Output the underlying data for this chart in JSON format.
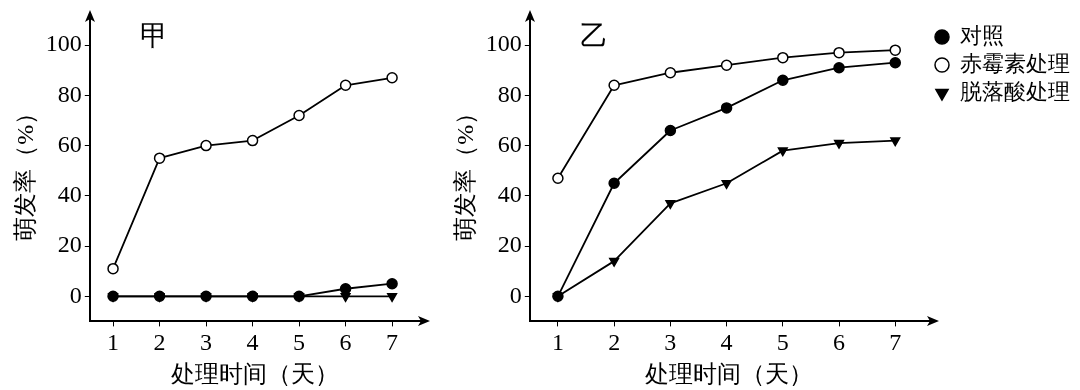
{
  "chart_data": [
    {
      "type": "line",
      "title": "甲",
      "xlabel": "处理时间（天）",
      "ylabel": "萌发率（%）",
      "x": [
        1,
        2,
        3,
        4,
        5,
        6,
        7
      ],
      "xlim": [
        0.5,
        7.6
      ],
      "xticks": [
        1,
        2,
        3,
        4,
        5,
        6,
        7
      ],
      "ylim": [
        -10,
        110
      ],
      "yticks": [
        0,
        20,
        40,
        60,
        80,
        100
      ],
      "legend": false,
      "series": [
        {
          "color": "#000000",
          "marker": "circle",
          "values": [
            0,
            0,
            0,
            0,
            0,
            3,
            5
          ]
        },
        {
          "color": "#000000",
          "colors": [
            "#ffffff",
            "#ffffff",
            "#ffffff",
            "#ffffff",
            "#ffffff",
            "#ffffff",
            "#ffffff"
          ],
          "marker": "circle",
          "values": [
            11,
            55,
            60,
            62,
            72,
            84,
            87
          ]
        },
        {
          "color": "#000000",
          "marker": "triangle",
          "values": [
            0,
            0,
            0,
            0,
            0,
            0,
            0
          ]
        }
      ]
    },
    {
      "type": "line",
      "title": "乙",
      "xlabel": "处理时间（天）",
      "ylabel": "萌发率（%）",
      "x": [
        1,
        2,
        3,
        4,
        5,
        6,
        7
      ],
      "xlim": [
        0.5,
        7.6
      ],
      "xticks": [
        1,
        2,
        3,
        4,
        5,
        6,
        7
      ],
      "ylim": [
        -10,
        110
      ],
      "yticks": [
        0,
        20,
        40,
        60,
        80,
        100
      ],
      "legend": "top right",
      "series": [
        {
          "name": "对照",
          "color": "#000000",
          "marker": "circle",
          "values": [
            0,
            45,
            66,
            75,
            86,
            91,
            93
          ]
        },
        {
          "name": "赤霉素处理",
          "color": "#000000",
          "colors": [
            "#ffffff",
            "#ffffff",
            "#ffffff",
            "#ffffff",
            "#ffffff",
            "#ffffff",
            "#ffffff"
          ],
          "marker": "circle",
          "values": [
            47,
            84,
            89,
            92,
            95,
            97,
            98
          ]
        },
        {
          "name": "脱落酸处理",
          "color": "#000000",
          "marker": "triangle",
          "values": [
            0,
            14,
            37,
            45,
            58,
            61,
            62
          ]
        }
      ]
    }
  ]
}
